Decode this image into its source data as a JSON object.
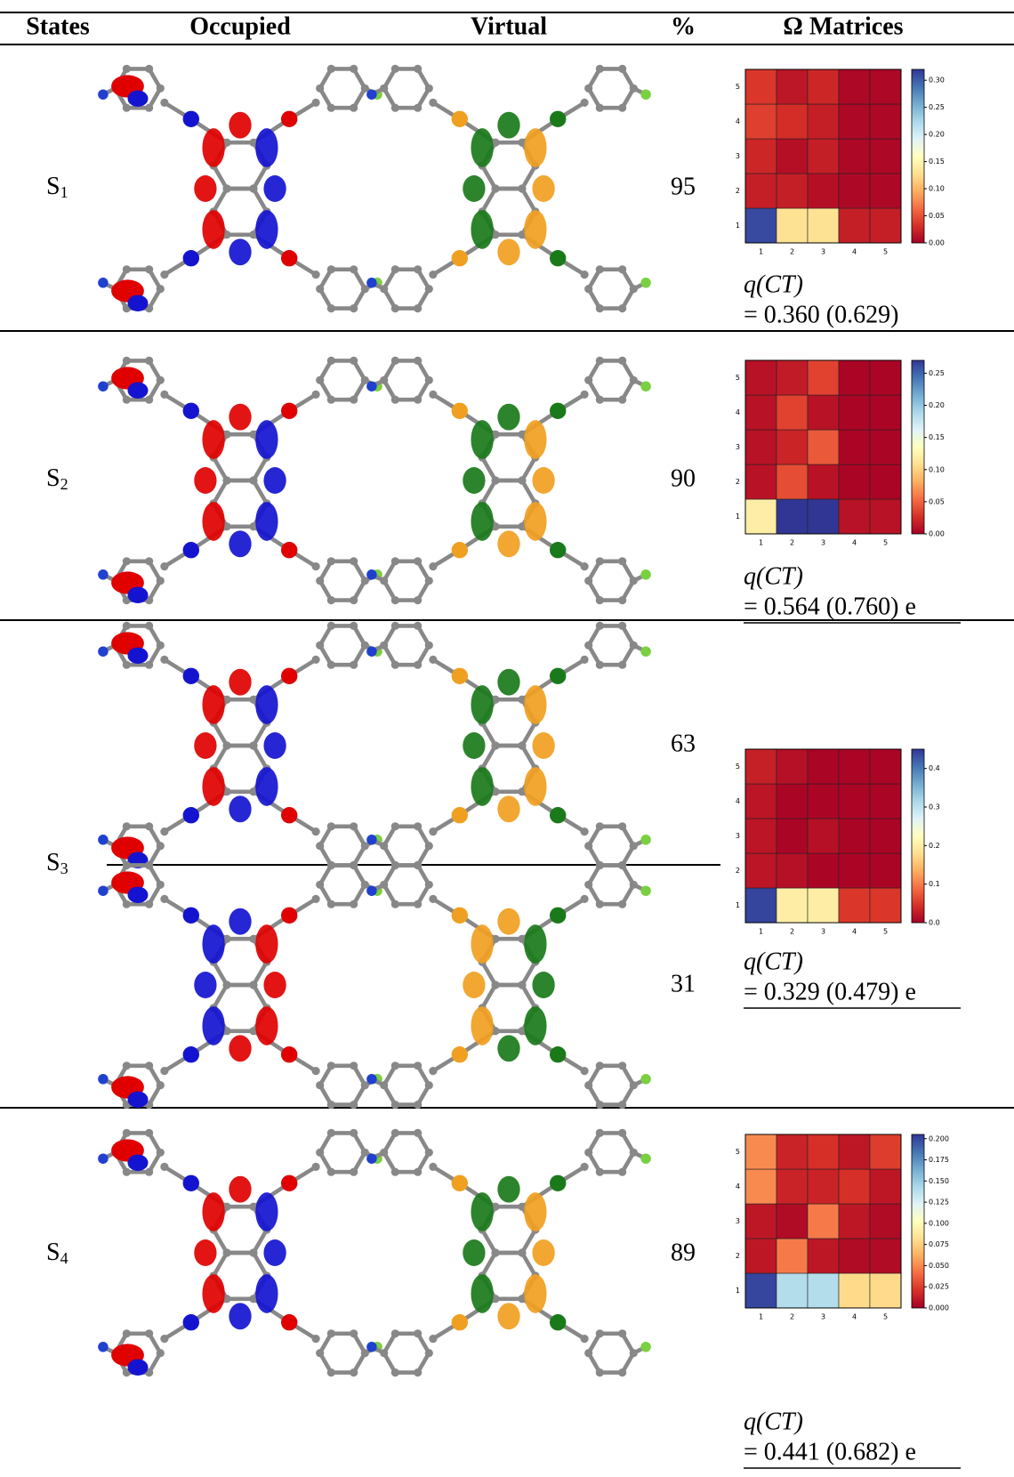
{
  "table": {
    "headers": [
      "States",
      "Occupied",
      "Virtual",
      "%",
      "Ω Matrices"
    ],
    "colormap": [
      "#a50026",
      "#d73027",
      "#f46d43",
      "#fdae61",
      "#fee090",
      "#ffffbf",
      "#e0f3f8",
      "#abd9e9",
      "#74add1",
      "#4575b4",
      "#313695"
    ],
    "rows": [
      {
        "state": {
          "label": "S",
          "sub": "1"
        },
        "percent": [
          95
        ],
        "q_label": "q(CT)",
        "q_value": "= 0.360 (0.629)",
        "omega": {
          "axis_ticks": [
            1,
            2,
            3,
            4,
            5
          ],
          "clim": [
            0,
            0.32
          ],
          "cticks": [
            {
              "value": 0,
              "label": "0.00"
            },
            0.05,
            {
              "value": 0.1,
              "label": "0.10"
            },
            0.15,
            {
              "value": 0.2,
              "label": "0.20"
            },
            0.25,
            {
              "value": 0.3,
              "label": "0.30"
            }
          ],
          "values": [
            [
              0.31,
              0.13,
              0.13,
              0.02,
              0.02
            ],
            [
              0.02,
              0.02,
              0.01,
              0.005,
              0.005
            ],
            [
              0.025,
              0.01,
              0.02,
              0.005,
              0.005
            ],
            [
              0.04,
              0.03,
              0.02,
              0.005,
              0.005
            ],
            [
              0.035,
              0.015,
              0.025,
              0.005,
              0.005
            ]
          ]
        }
      },
      {
        "state": {
          "label": "S",
          "sub": "2"
        },
        "percent": [
          90
        ],
        "q_label": "q(CT)",
        "q_value": "= 0.564 (0.760) e",
        "omega": {
          "axis_ticks": [
            1,
            2,
            3,
            4,
            5
          ],
          "clim": [
            0,
            0.27
          ],
          "cticks": [
            {
              "value": 0,
              "label": "0.00"
            },
            0.05,
            {
              "value": 0.1,
              "label": "0.10"
            },
            0.15,
            {
              "value": 0.2,
              "label": "0.20"
            },
            0.25
          ],
          "values": [
            [
              0.12,
              0.27,
              0.27,
              0.01,
              0.01
            ],
            [
              0.01,
              0.04,
              0.01,
              0.003,
              0.003
            ],
            [
              0.01,
              0.02,
              0.045,
              0.003,
              0.003
            ],
            [
              0.01,
              0.035,
              0.01,
              0.003,
              0.003
            ],
            [
              0.01,
              0.015,
              0.035,
              0.003,
              0.003
            ]
          ]
        }
      },
      {
        "state": {
          "label": "S",
          "sub": "3"
        },
        "percent": [
          63,
          31
        ],
        "q_label": "q(CT)",
        "q_value": "= 0.329 (0.479) e",
        "omega": {
          "axis_ticks": [
            1,
            2,
            3,
            4,
            5
          ],
          "clim": [
            0,
            0.45
          ],
          "cticks": [
            {
              "value": 0,
              "label": "0.0"
            },
            0.1,
            0.2,
            0.3,
            0.4
          ],
          "values": [
            [
              0.44,
              0.2,
              0.2,
              0.05,
              0.05
            ],
            [
              0.02,
              0.015,
              0.005,
              0.005,
              0.005
            ],
            [
              0.02,
              0.005,
              0.015,
              0.005,
              0.005
            ],
            [
              0.02,
              0.005,
              0.005,
              0.005,
              0.005
            ],
            [
              0.03,
              0.015,
              0.005,
              0.005,
              0.005
            ]
          ]
        }
      },
      {
        "state": {
          "label": "S",
          "sub": "4"
        },
        "percent": [
          89
        ],
        "q_label": "q(CT)",
        "q_value": "= 0.441 (0.682) e",
        "omega": {
          "axis_ticks": [
            1,
            2,
            3,
            4,
            5
          ],
          "clim": [
            0,
            0.205
          ],
          "cticks": [
            {
              "value": 0,
              "label": "0.000"
            },
            0.025,
            {
              "value": 0.05,
              "label": "0.050"
            },
            0.075,
            {
              "value": 0.1,
              "label": "0.100"
            },
            0.125,
            {
              "value": 0.15,
              "label": "0.150"
            },
            0.175,
            {
              "value": 0.2,
              "label": "0.200"
            }
          ],
          "values": [
            [
              0.2,
              0.14,
              0.14,
              0.08,
              0.08
            ],
            [
              0.01,
              0.045,
              0.01,
              0.005,
              0.005
            ],
            [
              0.01,
              0.005,
              0.045,
              0.01,
              0.005
            ],
            [
              0.05,
              0.015,
              0.015,
              0.02,
              0.01
            ],
            [
              0.05,
              0.015,
              0.02,
              0.01,
              0.025
            ]
          ]
        }
      }
    ]
  }
}
